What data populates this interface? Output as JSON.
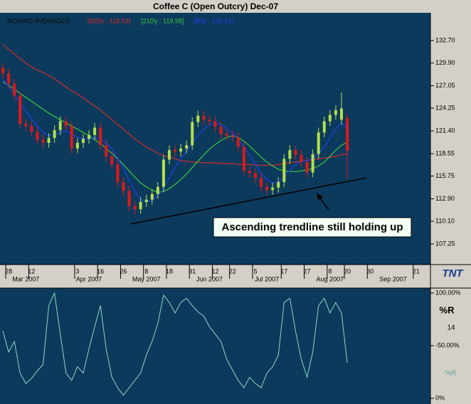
{
  "logo": "TNT",
  "chart_data": [
    {
      "type": "candlestick",
      "title": "Coffee C (Open Outcry) Dec-07",
      "legend_title": "MOVING AVERAGES:",
      "categories": [
        null,
        "28",
        null,
        null,
        null,
        "12",
        null,
        null,
        null,
        null,
        null,
        null,
        null,
        "3",
        null,
        null,
        null,
        "16",
        null,
        null,
        null,
        "26",
        null,
        null,
        null,
        "8",
        null,
        null,
        null,
        "18",
        null,
        null,
        null,
        "31",
        null,
        null,
        null,
        "12",
        null,
        null,
        "22",
        null,
        null,
        null,
        "5",
        null,
        null,
        null,
        null,
        "17",
        null,
        null,
        null,
        "27",
        null,
        null,
        null,
        "8",
        null,
        null,
        "20",
        null,
        null,
        null,
        "30",
        null,
        null,
        null,
        null,
        null,
        null,
        null,
        "21",
        null,
        null
      ],
      "category_months": [
        null,
        null,
        null,
        null,
        "Mar 2007",
        null,
        null,
        null,
        null,
        null,
        null,
        null,
        null,
        null,
        null,
        "Apr 2007",
        null,
        null,
        null,
        null,
        null,
        null,
        null,
        null,
        null,
        "May 2007",
        null,
        null,
        null,
        null,
        null,
        null,
        null,
        null,
        null,
        null,
        "Jun 2007",
        null,
        null,
        null,
        null,
        null,
        null,
        null,
        null,
        null,
        "Jul 2007",
        null,
        null,
        null,
        null,
        null,
        null,
        null,
        null,
        null,
        null,
        "Aug 2007",
        null,
        null,
        null,
        null,
        null,
        null,
        null,
        null,
        null,
        null,
        "Sep 2007",
        null,
        null,
        null,
        null,
        null,
        null
      ],
      "open": [
        129.3,
        128.6,
        127.3,
        125.8,
        122.3,
        122.0,
        121.3,
        120.3,
        119.9,
        120.5,
        121.5,
        122.6,
        122.0,
        119.2,
        119.9,
        120.4,
        120.9,
        121.8,
        119.6,
        118.2,
        117.2,
        115.0,
        113.9,
        112.0,
        111.6,
        112.5,
        112.8,
        113.5,
        114.4,
        117.8,
        119.0,
        118.8,
        119.2,
        119.6,
        122.5,
        123.3,
        122.8,
        122.6,
        121.9,
        121.0,
        120.8,
        120.6,
        119.4,
        116.4,
        116.1,
        115.5,
        114.4,
        114.0,
        114.3,
        115.0,
        117.9,
        119.0,
        118.4,
        117.5,
        116.2,
        118.5,
        121.2,
        122.6,
        123.4,
        122.8,
        123.0,
        null,
        null,
        null,
        null,
        null,
        null,
        null,
        null,
        null,
        null,
        null,
        null,
        null,
        null
      ],
      "high": [
        129.9,
        129.2,
        127.9,
        126.4,
        122.9,
        122.6,
        121.9,
        120.9,
        121.1,
        122.1,
        123.2,
        123.2,
        122.6,
        120.5,
        121.0,
        121.5,
        122.4,
        122.4,
        120.2,
        118.8,
        117.8,
        115.6,
        114.5,
        112.6,
        113.1,
        113.4,
        114.1,
        115.0,
        118.4,
        119.6,
        119.6,
        119.8,
        120.2,
        123.1,
        123.9,
        123.9,
        123.4,
        123.2,
        122.5,
        121.6,
        121.4,
        121.2,
        120.0,
        117.0,
        116.7,
        116.1,
        115.0,
        114.9,
        115.6,
        118.5,
        119.6,
        119.6,
        119.0,
        118.1,
        119.1,
        121.8,
        123.2,
        124.0,
        124.6,
        126.2,
        123.5,
        null,
        null,
        null,
        null,
        null,
        null,
        null,
        null,
        null,
        null,
        null,
        null,
        null,
        null
      ],
      "low": [
        128.0,
        126.7,
        125.2,
        121.7,
        121.4,
        120.7,
        119.7,
        119.3,
        119.3,
        119.9,
        120.9,
        121.4,
        118.6,
        118.6,
        119.3,
        119.8,
        120.3,
        119.0,
        117.6,
        116.6,
        114.4,
        113.3,
        111.4,
        111.0,
        111.0,
        111.9,
        112.2,
        112.9,
        113.8,
        117.2,
        118.2,
        118.2,
        118.6,
        119.0,
        121.9,
        122.2,
        122.0,
        121.3,
        120.4,
        120.2,
        120.0,
        118.8,
        115.8,
        115.5,
        114.9,
        113.8,
        113.4,
        113.4,
        113.7,
        114.4,
        117.3,
        117.8,
        116.9,
        115.6,
        115.6,
        117.9,
        120.6,
        122.0,
        122.8,
        122.2,
        115.4,
        null,
        null,
        null,
        null,
        null,
        null,
        null,
        null,
        null,
        null,
        null,
        null,
        null,
        null
      ],
      "close": [
        128.6,
        127.3,
        125.8,
        122.3,
        122.0,
        121.3,
        120.3,
        119.9,
        120.5,
        121.5,
        122.6,
        122.0,
        119.2,
        119.9,
        120.4,
        120.9,
        121.8,
        119.6,
        118.2,
        117.2,
        115.0,
        113.9,
        112.0,
        111.6,
        112.5,
        112.8,
        113.5,
        114.4,
        117.8,
        119.0,
        118.8,
        119.2,
        119.6,
        122.5,
        123.3,
        122.8,
        122.6,
        121.9,
        121.0,
        120.8,
        120.6,
        119.4,
        116.4,
        116.1,
        115.5,
        114.4,
        114.0,
        114.3,
        115.0,
        117.9,
        119.0,
        118.4,
        117.5,
        116.2,
        118.5,
        121.2,
        122.6,
        123.4,
        124.0,
        124.2,
        118.9,
        null,
        null,
        null,
        null,
        null,
        null,
        null,
        null,
        null,
        null,
        null,
        null,
        null,
        null
      ],
      "up_color": "#b4e04c",
      "down_color": "#e01818",
      "series": [
        {
          "name": "[50Dy : 118.53]",
          "color": "#d42a2a",
          "values": [
            132.2,
            131.6,
            131.0,
            130.4,
            129.9,
            129.4,
            129.0,
            128.7,
            128.3,
            127.9,
            127.4,
            126.9,
            126.4,
            126.0,
            125.5,
            125.0,
            124.5,
            124.0,
            123.4,
            122.8,
            122.2,
            121.6,
            121.0,
            120.4,
            119.9,
            119.4,
            119.0,
            118.6,
            118.3,
            118.1,
            117.9,
            117.7,
            117.6,
            117.5,
            117.5,
            117.4,
            117.4,
            117.4,
            117.3,
            117.3,
            117.3,
            117.2,
            117.2,
            117.2,
            117.1,
            117.1,
            117.1,
            117.1,
            117.2,
            117.3,
            117.4,
            117.5,
            117.6,
            117.7,
            117.8,
            117.9,
            118.0,
            118.1,
            118.2,
            118.4,
            118.53,
            null,
            null,
            null,
            null,
            null,
            null,
            null,
            null,
            null,
            null,
            null,
            null,
            null,
            null
          ]
        },
        {
          "name": "[21Dy : 119.98]",
          "color": "#3cc83c",
          "values": [
            127.5,
            127.1,
            126.6,
            126.1,
            125.6,
            125.1,
            124.6,
            124.1,
            123.6,
            123.2,
            122.8,
            122.4,
            122.0,
            121.6,
            121.2,
            120.8,
            120.3,
            119.8,
            119.2,
            118.6,
            117.9,
            117.2,
            116.4,
            115.6,
            114.9,
            114.4,
            114.0,
            113.7,
            113.8,
            114.2,
            114.7,
            115.3,
            116.0,
            116.8,
            117.6,
            118.4,
            119.1,
            119.7,
            120.2,
            120.6,
            120.8,
            120.6,
            120.1,
            119.5,
            118.8,
            118.1,
            117.5,
            117.0,
            116.6,
            116.4,
            116.3,
            116.3,
            116.4,
            116.5,
            116.7,
            117.0,
            117.5,
            118.2,
            119.0,
            119.6,
            119.98,
            null,
            null,
            null,
            null,
            null,
            null,
            null,
            null,
            null,
            null,
            null,
            null,
            null,
            null
          ]
        },
        {
          "name": "[9Dy : 121.61]",
          "color": "#2040f0",
          "values": [
            127.8,
            127.0,
            126.0,
            124.9,
            123.9,
            122.9,
            122.0,
            121.2,
            120.8,
            120.9,
            121.2,
            121.4,
            121.0,
            120.6,
            120.4,
            120.4,
            120.6,
            120.4,
            119.9,
            119.1,
            118.0,
            116.7,
            115.2,
            113.8,
            112.8,
            112.5,
            112.7,
            113.3,
            114.3,
            115.6,
            116.8,
            117.9,
            118.8,
            119.8,
            120.8,
            121.6,
            122.2,
            122.4,
            122.2,
            121.7,
            121.1,
            120.4,
            119.4,
            118.3,
            117.2,
            116.1,
            115.3,
            114.9,
            115.0,
            115.6,
            116.5,
            117.2,
            117.6,
            117.7,
            117.9,
            118.5,
            119.4,
            120.5,
            121.6,
            122.4,
            121.61,
            null,
            null,
            null,
            null,
            null,
            null,
            null,
            null,
            null,
            null,
            null,
            null,
            null,
            null
          ]
        }
      ],
      "ylim": [
        104.67,
        136.17
      ],
      "yticks": [
        {
          "value": 107.25,
          "label": "107.25"
        },
        {
          "value": 110.1,
          "label": "110.10"
        },
        {
          "value": 112.9,
          "label": "112.90"
        },
        {
          "value": 115.75,
          "label": "115.75"
        },
        {
          "value": 118.55,
          "label": "118.55"
        },
        {
          "value": 121.4,
          "label": "121.40"
        },
        {
          "value": 124.25,
          "label": "124.25"
        },
        {
          "value": 127.05,
          "label": "127.05"
        },
        {
          "value": 129.9,
          "label": "129.90"
        },
        {
          "value": 132.7,
          "label": "132.70"
        }
      ],
      "annotation": "Ascending trendline still holding up"
    },
    {
      "type": "line",
      "title": "%R",
      "subtitle": "14",
      "series": [
        {
          "name": "%R",
          "color": "#8cd8c4",
          "values": [
            -64,
            -44,
            -54,
            -24,
            -14,
            -19,
            -26,
            -32,
            -88,
            -100,
            -61,
            -24,
            -17,
            -30,
            -24,
            -47,
            -68,
            -88,
            -47,
            -20,
            -10,
            -3,
            -10,
            -17,
            -24,
            -41,
            -54,
            -71,
            -98,
            -91,
            -81,
            -91,
            -95,
            -88,
            -82,
            -78,
            -68,
            -61,
            -54,
            -37,
            -27,
            -17,
            -10,
            -20,
            -14,
            -10,
            -24,
            -30,
            -41,
            -91,
            -95,
            -64,
            -37,
            -20,
            -44,
            -88,
            -95,
            -81,
            -91,
            -81,
            -34
          ]
        }
      ],
      "ylim": [
        5.4,
        -104.7
      ],
      "yticks": [
        {
          "value": -100,
          "label": "100.00%"
        },
        {
          "value": -50,
          "label": "-50.00%"
        },
        {
          "value": 0,
          "label": "0%"
        }
      ]
    }
  ]
}
